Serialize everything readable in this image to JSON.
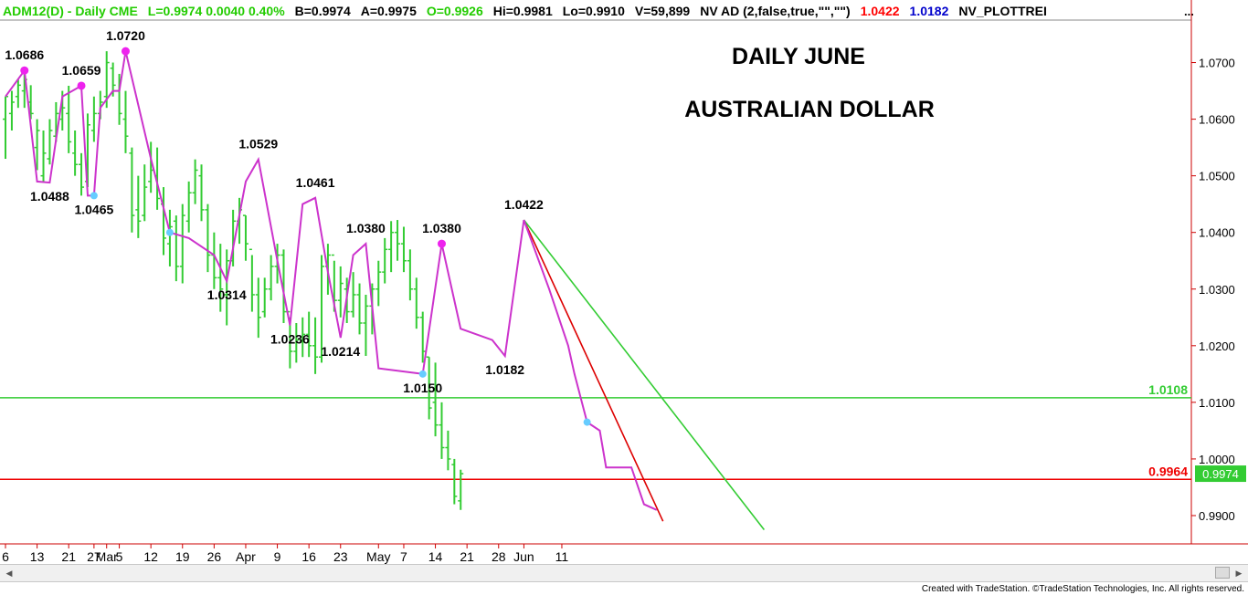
{
  "header": {
    "segments": [
      {
        "text": "ADM12(D) - Daily  CME",
        "color": "#22cc00"
      },
      {
        "text": "L=0.9974  0.0040  0.40%",
        "color": "#22cc00"
      },
      {
        "text": "B=0.9974",
        "color": "#000000"
      },
      {
        "text": "A=0.9975",
        "color": "#000000"
      },
      {
        "text": "O=0.9926",
        "color": "#22cc00"
      },
      {
        "text": "Hi=0.9981",
        "color": "#000000"
      },
      {
        "text": "Lo=0.9910",
        "color": "#000000"
      },
      {
        "text": "V=59,899",
        "color": "#000000"
      },
      {
        "text": "NV AD (2,false,true,\"\",\"\")",
        "color": "#000000"
      },
      {
        "text": "1.0422",
        "color": "#ff0000"
      },
      {
        "text": "1.0182",
        "color": "#0000cc"
      },
      {
        "text": "NV_PLOTTREI",
        "color": "#000000"
      }
    ]
  },
  "footer": {
    "credit": "Created with TradeStation. ©TradeStation Technologies, Inc. All rights reserved."
  },
  "chart_data": {
    "type": "bar",
    "title": "DAILY JUNE",
    "subtitle": "AUSTRALIAN DOLLAR",
    "ylim": [
      0.985,
      1.0775
    ],
    "yticks": [
      "1.0700",
      "1.0600",
      "1.0500",
      "1.0400",
      "1.0300",
      "1.0200",
      "1.0100",
      "1.0000",
      "0.9900"
    ],
    "xticks": [
      {
        "label": "6",
        "bar": 0
      },
      {
        "label": "13",
        "bar": 5
      },
      {
        "label": "21",
        "bar": 10
      },
      {
        "label": "27",
        "bar": 14
      },
      {
        "label": "Mar",
        "bar": 16
      },
      {
        "label": "5",
        "bar": 18
      },
      {
        "label": "12",
        "bar": 23
      },
      {
        "label": "19",
        "bar": 28
      },
      {
        "label": "26",
        "bar": 33
      },
      {
        "label": "Apr",
        "bar": 38
      },
      {
        "label": "9",
        "bar": 43
      },
      {
        "label": "16",
        "bar": 48
      },
      {
        "label": "23",
        "bar": 53
      },
      {
        "label": "May",
        "bar": 59
      },
      {
        "label": "7",
        "bar": 63
      },
      {
        "label": "14",
        "bar": 68
      },
      {
        "label": "21",
        "bar": 73
      },
      {
        "label": "28",
        "bar": 78
      },
      {
        "label": "Jun",
        "bar": 82
      },
      {
        "label": "11",
        "bar": 88
      }
    ],
    "bars": [
      [
        1.064,
        1.053,
        1.06,
        1.064
      ],
      [
        1.065,
        1.058,
        1.061,
        1.063
      ],
      [
        1.067,
        1.062,
        1.064,
        1.066
      ],
      [
        1.0686,
        1.062,
        1.065,
        1.067
      ],
      [
        1.066,
        1.06,
        1.063,
        1.061
      ],
      [
        1.06,
        1.051,
        1.055,
        1.058
      ],
      [
        1.058,
        1.0488,
        1.05,
        1.054
      ],
      [
        1.06,
        1.052,
        1.053,
        1.058
      ],
      [
        1.063,
        1.056,
        1.057,
        1.061
      ],
      [
        1.065,
        1.058,
        1.06,
        1.062
      ],
      [
        1.0659,
        1.054,
        1.061,
        1.056
      ],
      [
        1.058,
        1.05,
        1.054,
        1.052
      ],
      [
        1.054,
        1.0465,
        1.052,
        1.048
      ],
      [
        1.061,
        1.048,
        1.049,
        1.059
      ],
      [
        1.064,
        1.056,
        1.058,
        1.061
      ],
      [
        1.065,
        1.06,
        1.061,
        1.063
      ],
      [
        1.072,
        1.062,
        1.064,
        1.07
      ],
      [
        1.07,
        1.064,
        1.069,
        1.066
      ],
      [
        1.068,
        1.059,
        1.065,
        1.061
      ],
      [
        1.065,
        1.054,
        1.06,
        1.057
      ],
      [
        1.055,
        1.04,
        1.054,
        1.043
      ],
      [
        1.05,
        1.039,
        1.044,
        1.042
      ],
      [
        1.052,
        1.042,
        1.043,
        1.048
      ],
      [
        1.056,
        1.047,
        1.049,
        1.051
      ],
      [
        1.055,
        1.044,
        1.05,
        1.046
      ],
      [
        1.048,
        1.036,
        1.045,
        1.039
      ],
      [
        1.044,
        1.034,
        1.038,
        1.041
      ],
      [
        1.043,
        1.0314,
        1.042,
        1.034
      ],
      [
        1.045,
        1.031,
        1.034,
        1.043
      ],
      [
        1.049,
        1.04,
        1.042,
        1.047
      ],
      [
        1.0529,
        1.045,
        1.047,
        1.051
      ],
      [
        1.052,
        1.042,
        1.05,
        1.044
      ],
      [
        1.045,
        1.033,
        1.044,
        1.036
      ],
      [
        1.04,
        1.03,
        1.036,
        1.032
      ],
      [
        1.038,
        1.026,
        1.032,
        1.03
      ],
      [
        1.037,
        1.0236,
        1.029,
        1.035
      ],
      [
        1.044,
        1.034,
        1.035,
        1.042
      ],
      [
        1.0461,
        1.038,
        1.042,
        1.044
      ],
      [
        1.043,
        1.035,
        1.043,
        1.038
      ],
      [
        1.036,
        1.026,
        1.037,
        1.029
      ],
      [
        1.032,
        1.0214,
        1.029,
        1.025
      ],
      [
        1.032,
        1.025,
        1.026,
        1.03
      ],
      [
        1.036,
        1.028,
        1.03,
        1.034
      ],
      [
        1.038,
        1.031,
        1.034,
        1.036
      ],
      [
        1.037,
        1.024,
        1.036,
        1.026
      ],
      [
        1.025,
        1.016,
        1.026,
        1.019
      ],
      [
        1.024,
        1.017,
        1.019,
        1.021
      ],
      [
        1.025,
        1.018,
        1.021,
        1.022
      ],
      [
        1.026,
        1.018,
        1.022,
        1.02
      ],
      [
        1.025,
        1.015,
        1.02,
        1.018
      ],
      [
        1.036,
        1.017,
        1.018,
        1.034
      ],
      [
        1.038,
        1.029,
        1.034,
        1.036
      ],
      [
        1.035,
        1.026,
        1.036,
        1.028
      ],
      [
        1.034,
        1.025,
        1.028,
        1.031
      ],
      [
        1.032,
        1.024,
        1.03,
        1.026
      ],
      [
        1.033,
        1.025,
        1.026,
        1.029
      ],
      [
        1.031,
        1.022,
        1.029,
        1.024
      ],
      [
        1.029,
        1.0182,
        1.024,
        1.027
      ],
      [
        1.031,
        1.022,
        1.027,
        1.03
      ],
      [
        1.035,
        1.027,
        1.03,
        1.033
      ],
      [
        1.039,
        1.031,
        1.033,
        1.037
      ],
      [
        1.042,
        1.033,
        1.037,
        1.04
      ],
      [
        1.0422,
        1.035,
        1.04,
        1.038
      ],
      [
        1.041,
        1.033,
        1.038,
        1.035
      ],
      [
        1.037,
        1.028,
        1.035,
        1.03
      ],
      [
        1.032,
        1.023,
        1.03,
        1.025
      ],
      [
        1.026,
        1.017,
        1.025,
        1.019
      ],
      [
        1.018,
        1.007,
        1.018,
        1.009
      ],
      [
        1.017,
        1.004,
        1.01,
        1.006
      ],
      [
        1.01,
        1.0,
        1.006,
        1.002
      ],
      [
        1.005,
        0.998,
        1.002,
        1.0
      ],
      [
        1.0,
        0.992,
        0.999,
        0.9934
      ],
      [
        0.9981,
        0.991,
        0.9926,
        0.9974
      ]
    ],
    "swing_line": [
      [
        0,
        1.064
      ],
      [
        3,
        1.0686
      ],
      [
        5,
        1.049
      ],
      [
        7,
        1.0488
      ],
      [
        9,
        1.064
      ],
      [
        12,
        1.0659
      ],
      [
        13,
        1.0465
      ],
      [
        14,
        1.0465
      ],
      [
        15,
        1.062
      ],
      [
        17,
        1.065
      ],
      [
        18,
        1.065
      ],
      [
        19,
        1.072
      ],
      [
        23,
        1.053
      ],
      [
        26,
        1.04
      ],
      [
        29,
        1.039
      ],
      [
        33,
        1.036
      ],
      [
        35,
        1.0314
      ],
      [
        38,
        1.049
      ],
      [
        40,
        1.0529
      ],
      [
        43,
        1.035
      ],
      [
        45,
        1.0236
      ],
      [
        47,
        1.045
      ],
      [
        49,
        1.0461
      ],
      [
        51,
        1.033
      ],
      [
        53,
        1.0214
      ],
      [
        55,
        1.036
      ],
      [
        57,
        1.038
      ],
      [
        59,
        1.016
      ],
      [
        66,
        1.015
      ],
      [
        69,
        1.038
      ],
      [
        72,
        1.023
      ],
      [
        77,
        1.021
      ],
      [
        79,
        1.0182
      ],
      [
        82,
        1.0422
      ],
      [
        86,
        1.03
      ],
      [
        89,
        1.02
      ],
      [
        90,
        1.015
      ],
      [
        92,
        1.0065
      ],
      [
        94,
        1.005
      ],
      [
        95,
        0.9985
      ],
      [
        97,
        0.9985
      ],
      [
        99,
        0.9985
      ],
      [
        101,
        0.992
      ],
      [
        103,
        0.991
      ]
    ],
    "swing_labels": [
      {
        "text": "1.0686",
        "bar": 3,
        "value": 1.0686,
        "pos": "above"
      },
      {
        "text": "1.0659",
        "bar": 12,
        "value": 1.0659,
        "pos": "above"
      },
      {
        "text": "1.0720",
        "bar": 19,
        "value": 1.072,
        "pos": "above"
      },
      {
        "text": "1.0488",
        "bar": 7,
        "value": 1.0488,
        "pos": "below"
      },
      {
        "text": "1.0465",
        "bar": 14,
        "value": 1.0465,
        "pos": "below"
      },
      {
        "text": "1.0529",
        "bar": 40,
        "value": 1.0529,
        "pos": "above"
      },
      {
        "text": "1.0314",
        "bar": 35,
        "value": 1.0314,
        "pos": "below"
      },
      {
        "text": "1.0461",
        "bar": 49,
        "value": 1.0461,
        "pos": "above"
      },
      {
        "text": "1.0236",
        "bar": 45,
        "value": 1.0236,
        "pos": "below"
      },
      {
        "text": "1.0380",
        "bar": 57,
        "value": 1.038,
        "pos": "above"
      },
      {
        "text": "1.0214",
        "bar": 53,
        "value": 1.0214,
        "pos": "below"
      },
      {
        "text": "1.0380",
        "bar": 69,
        "value": 1.038,
        "pos": "above"
      },
      {
        "text": "1.0150",
        "bar": 66,
        "value": 1.015,
        "pos": "below"
      },
      {
        "text": "1.0182",
        "bar": 79,
        "value": 1.0182,
        "pos": "below"
      },
      {
        "text": "1.0422",
        "bar": 82,
        "value": 1.0422,
        "pos": "above"
      }
    ],
    "magenta_dots": [
      [
        3,
        1.0686
      ],
      [
        12,
        1.0659
      ],
      [
        19,
        1.072
      ],
      [
        69,
        1.038
      ]
    ],
    "cyan_dots": [
      [
        14,
        1.0465
      ],
      [
        26,
        1.04
      ],
      [
        66,
        1.015
      ],
      [
        92,
        1.0065
      ]
    ],
    "hlines": [
      {
        "value": 1.0108,
        "label": "1.0108",
        "color": "#33cc33"
      },
      {
        "value": 0.9964,
        "label": "0.9964",
        "color": "#ee0000"
      }
    ],
    "trendlines": [
      {
        "from": [
          82,
          1.0422
        ],
        "to": [
          104,
          0.989
        ],
        "color": "#dd0000"
      },
      {
        "from": [
          82,
          1.0422
        ],
        "to": [
          120,
          0.9875
        ],
        "color": "#33cc33"
      }
    ],
    "last_price": {
      "value": 0.9974,
      "label": "0.9974",
      "color": "#33cc33"
    },
    "colors": {
      "bars": "#33cc33",
      "swing": "#cc33cc",
      "magenta_dot": "#ee22ee",
      "cyan_dot": "#66ccff",
      "axis": "#cc0000"
    }
  }
}
